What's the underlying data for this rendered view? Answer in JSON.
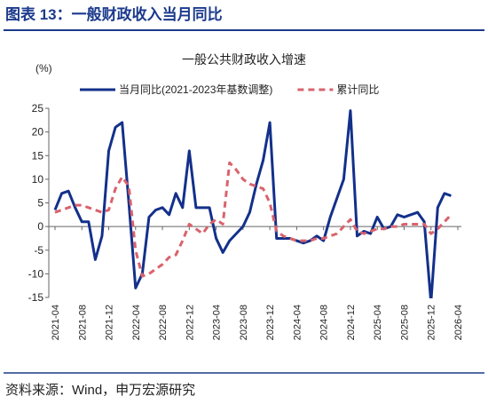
{
  "header": {
    "title": "图表 13：一般财政收入当月同比"
  },
  "footer": {
    "source": "资料来源：Wind，申万宏源研究"
  },
  "chart_data": {
    "type": "line",
    "title": "一般公共财政收入增速",
    "y_label": "(%)",
    "categories": [
      "2021-04",
      null,
      null,
      null,
      "2021-08",
      null,
      null,
      null,
      "2021-12",
      null,
      null,
      null,
      "2022-04",
      null,
      null,
      null,
      "2022-08",
      null,
      null,
      null,
      "2022-12",
      null,
      null,
      null,
      "2023-04",
      null,
      null,
      null,
      "2023-08",
      null,
      null,
      null,
      "2023-12",
      null,
      null,
      null,
      "2024-04",
      null,
      null,
      null,
      "2024-08",
      null,
      null,
      null,
      "2024-12",
      null,
      null,
      null,
      "2025-04",
      null,
      null,
      null,
      "2025-08",
      null,
      null,
      null,
      "2025-12",
      null,
      null,
      null,
      "2026-04"
    ],
    "series": [
      {
        "name": "当月同比(2021-2023年基数调整)",
        "color": "#13308a",
        "dash": false,
        "values": [
          3.5,
          7,
          7.5,
          4,
          1,
          1,
          -7,
          -2,
          16,
          21,
          22,
          5,
          -13,
          -10,
          2,
          3.5,
          4,
          2.5,
          7,
          4,
          16,
          4,
          4,
          4,
          -2.5,
          -5.5,
          -3,
          -1.5,
          0,
          3,
          9,
          14,
          22,
          -2.5,
          -2.5,
          -2.5,
          -3,
          -3.5,
          -3,
          -2,
          -3,
          2,
          6,
          10,
          24.5,
          -2,
          -1,
          -1.5,
          2,
          -0.5,
          0,
          2.5,
          2,
          2.5,
          3,
          1,
          -16,
          4,
          7,
          6.5,
          null
        ]
      },
      {
        "name": "累计同比",
        "color": "#d9636d",
        "dash": true,
        "values": [
          3,
          3.5,
          4,
          4.5,
          4.5,
          4,
          3.5,
          3,
          3.5,
          8,
          10.5,
          8.5,
          -5,
          -10.5,
          -10,
          -9,
          -8,
          -6.5,
          -6,
          -3,
          0.5,
          -0.5,
          -1.5,
          0.5,
          1.5,
          0.5,
          13.5,
          12,
          10,
          9,
          8.5,
          8,
          5,
          -1,
          -2,
          -2.5,
          -3,
          -3,
          -3,
          -2.5,
          -2.5,
          -2,
          -1.5,
          0,
          1.5,
          -1,
          -1.5,
          -1,
          -0.5,
          -0.5,
          0,
          0,
          0.5,
          0.5,
          0.5,
          0.5,
          -1.5,
          -0.5,
          1,
          2.5,
          null
        ]
      }
    ],
    "ylim": [
      -15,
      25
    ],
    "yticks": [
      -15,
      -10,
      -5,
      0,
      5,
      10,
      15,
      20,
      25
    ],
    "grid": false
  }
}
